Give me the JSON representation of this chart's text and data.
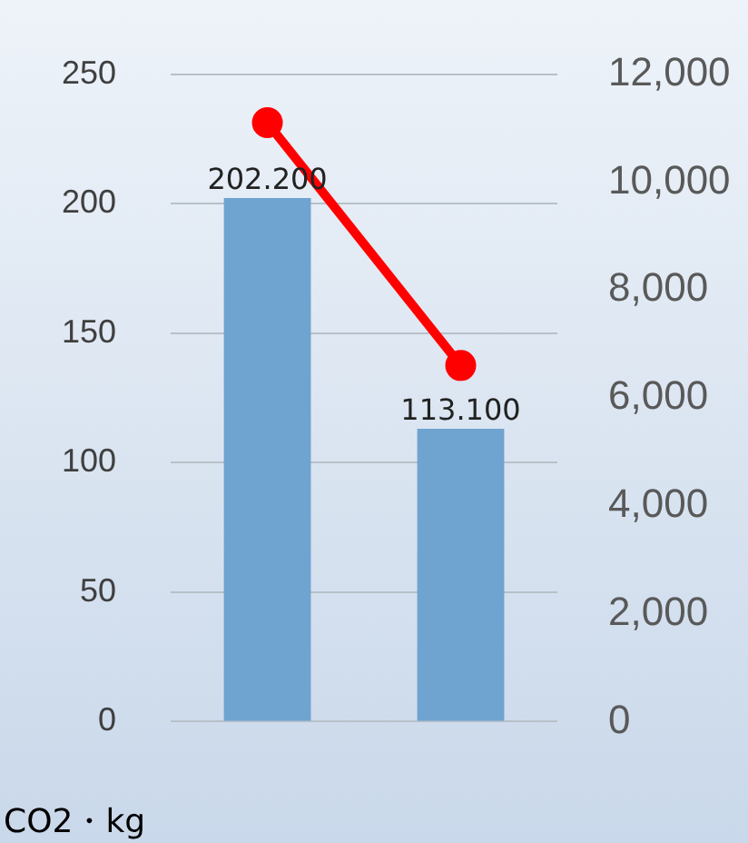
{
  "chart_data": {
    "type": "bar",
    "ylabel": "CO2・kg",
    "categories": [
      null,
      null
    ],
    "series": [
      {
        "color": "#6fa3d0",
        "values": [
          202.2,
          113.1
        ],
        "value_labels": [
          "202.200",
          "113.100"
        ]
      },
      {
        "type": "line",
        "axis": "y2",
        "color": "#ff0000",
        "values": [
          11100,
          6600
        ]
      }
    ],
    "ylim": [
      0,
      250
    ],
    "yticks": [
      0,
      50,
      100,
      150,
      200,
      250
    ],
    "y2lim": [
      0,
      12000
    ],
    "y2ticks": [
      0,
      {
        "value": 2000,
        "label": "2,000"
      },
      {
        "value": 4000,
        "label": "4,000"
      },
      {
        "value": 6000,
        "label": "6,000"
      },
      {
        "value": 8000,
        "label": "8,000"
      },
      {
        "value": 10000,
        "label": "10,000"
      },
      {
        "value": 12000,
        "label": "12,000"
      }
    ],
    "grid": "y",
    "legend": false,
    "marker": "circle",
    "line_style": "solid"
  }
}
